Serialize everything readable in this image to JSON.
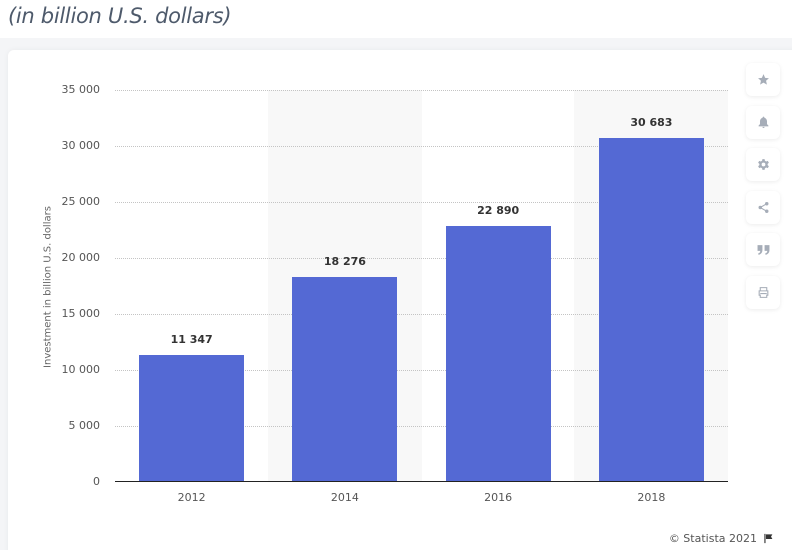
{
  "subtitle": "(in billion U.S. dollars)",
  "chart_data": {
    "type": "bar",
    "title": "",
    "subtitle": "(in billion U.S. dollars)",
    "xlabel": "",
    "ylabel": "Investment in billion U.S. dollars",
    "categories": [
      "2012",
      "2014",
      "2016",
      "2018"
    ],
    "values": [
      11347,
      18276,
      22890,
      30683
    ],
    "value_labels": [
      "11 347",
      "18 276",
      "22 890",
      "30 683"
    ],
    "ylim": [
      0,
      35000
    ],
    "yticks": [
      0,
      5000,
      10000,
      15000,
      20000,
      25000,
      30000,
      35000
    ],
    "ytick_labels": [
      "0",
      "5 000",
      "10 000",
      "15 000",
      "20 000",
      "25 000",
      "30 000",
      "35 000"
    ],
    "grid": true,
    "bar_color": "#5469d4",
    "legend": null
  },
  "toolbar": {
    "items": [
      {
        "name": "favorite",
        "icon": "★"
      },
      {
        "name": "notification",
        "icon": "🔔"
      },
      {
        "name": "settings",
        "icon": "⚙"
      },
      {
        "name": "share",
        "icon": "share"
      },
      {
        "name": "cite",
        "icon": "❞"
      },
      {
        "name": "print",
        "icon": "⎙"
      }
    ]
  },
  "footer": {
    "copyright": "© Statista 2021"
  }
}
